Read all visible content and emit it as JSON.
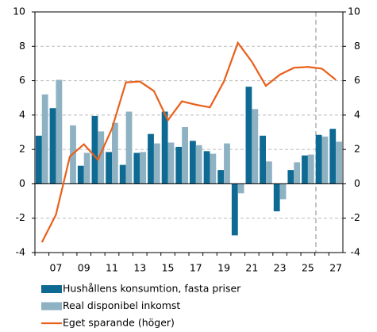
{
  "chart_data": {
    "type": "bar-line",
    "categories": [
      null,
      "07",
      null,
      "09",
      null,
      "11",
      null,
      "13",
      null,
      "15",
      null,
      "17",
      null,
      "19",
      null,
      "21",
      null,
      "23",
      null,
      "25",
      null,
      "27"
    ],
    "series": [
      {
        "name": "Hushållens konsumtion, fasta priser",
        "color": "#0e6a93",
        "kind": "bar",
        "values": [
          2.8,
          4.4,
          0,
          1.05,
          3.95,
          1.85,
          1.1,
          1.8,
          2.9,
          4.2,
          2.15,
          2.5,
          1.9,
          0.8,
          -3.0,
          5.65,
          2.8,
          -1.6,
          0.8,
          1.65,
          2.85,
          3.2
        ]
      },
      {
        "name": "Real disponibel inkomst",
        "color": "#8fb2c3",
        "kind": "bar",
        "values": [
          5.2,
          6.05,
          3.4,
          1.8,
          3.05,
          3.55,
          4.2,
          1.85,
          2.35,
          2.4,
          3.3,
          2.25,
          1.75,
          2.35,
          -0.55,
          4.35,
          1.3,
          -0.9,
          1.25,
          1.7,
          2.75,
          2.45
        ]
      },
      {
        "name": "Eget sparande (höger)",
        "color": "#e8601c",
        "kind": "line",
        "axis": "y2",
        "values": [
          -3.4,
          -1.8,
          1.6,
          2.3,
          1.4,
          3.2,
          5.9,
          5.95,
          5.4,
          3.7,
          4.8,
          4.6,
          4.45,
          5.95,
          8.2,
          7.1,
          5.7,
          6.35,
          6.75,
          6.8,
          6.7,
          6.05
        ]
      }
    ],
    "ylim": [
      -4,
      10
    ],
    "yticks": [
      -4,
      -2,
      0,
      2,
      4,
      6,
      8,
      10
    ],
    "y2lim": [
      -4,
      10
    ],
    "y2ticks": [
      -4,
      -2,
      0,
      2,
      4,
      6,
      8,
      10
    ],
    "grid": true
  }
}
